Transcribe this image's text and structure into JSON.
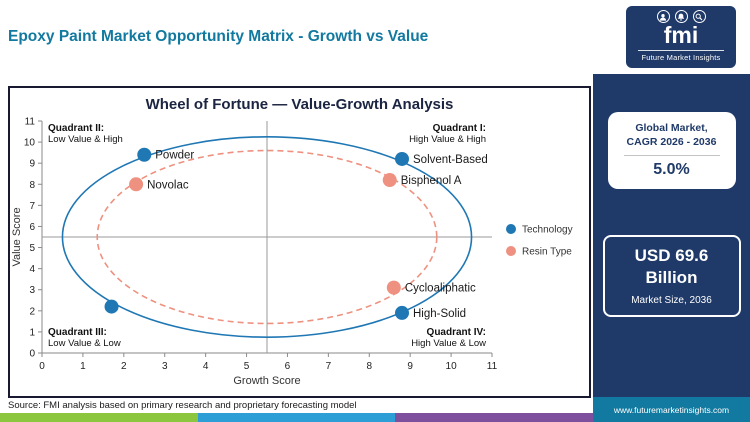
{
  "header": {
    "title": "Epoxy Paint Market Opportunity Matrix - Growth vs Value",
    "logo": {
      "text": "fmi",
      "subtitle": "Future Market Insights"
    }
  },
  "sidebar": {
    "cagr_box": {
      "line1": "Global Market,",
      "line2": "CAGR 2026 - 2036",
      "value": "5.0%"
    },
    "size_box": {
      "value": "USD 69.6 Billion",
      "label": "Market Size, 2036"
    },
    "url": "www.futuremarketinsights.com"
  },
  "footer": {
    "source": "Source: FMI analysis based on primary research and proprietary forecasting model"
  },
  "chart_data": {
    "type": "scatter",
    "title": "Wheel of Fortune — Value-Growth Analysis",
    "xlabel": "Growth Score",
    "ylabel": "Value Score",
    "xlim": [
      0,
      11
    ],
    "ylim": [
      0,
      11
    ],
    "xticks": [
      0,
      1,
      2,
      3,
      4,
      5,
      6,
      7,
      8,
      9,
      10,
      11
    ],
    "yticks": [
      0,
      1,
      2,
      3,
      4,
      5,
      6,
      7,
      8,
      9,
      10,
      11
    ],
    "grid": false,
    "legend_position": "right",
    "quadrant_lines": {
      "x": 5.5,
      "y": 5.5
    },
    "quadrants": [
      {
        "name": "Quadrant II:",
        "desc": "Low Value & High",
        "position": "top-left"
      },
      {
        "name": "Quadrant I:",
        "desc": "High Value & High",
        "position": "top-right"
      },
      {
        "name": "Quadrant III:",
        "desc": "Low Value & Low",
        "position": "bottom-left"
      },
      {
        "name": "Quadrant IV:",
        "desc": "High Value & Low",
        "position": "bottom-right"
      }
    ],
    "series": [
      {
        "name": "Technology",
        "color": "#1f77b4",
        "points": [
          {
            "label": "Powder",
            "x": 2.5,
            "y": 9.4
          },
          {
            "label": "Solvent-Based",
            "x": 8.8,
            "y": 9.2
          },
          {
            "label": "High-Solid",
            "x": 8.8,
            "y": 1.9
          },
          {
            "label": "",
            "x": 1.7,
            "y": 2.2
          }
        ]
      },
      {
        "name": "Resin Type",
        "color": "#ee9180",
        "points": [
          {
            "label": "Novolac",
            "x": 2.3,
            "y": 8.0
          },
          {
            "label": "Bisphenol A",
            "x": 8.5,
            "y": 8.2
          },
          {
            "label": "Cycloaliphatic",
            "x": 8.6,
            "y": 3.1
          }
        ]
      }
    ],
    "ellipses": [
      {
        "cx": 5.5,
        "cy": 5.5,
        "rx": 5.0,
        "ry": 4.75,
        "color": "#1f77b4",
        "dash": false
      },
      {
        "cx": 5.5,
        "cy": 5.5,
        "rx": 4.15,
        "ry": 4.1,
        "color": "#ee9180",
        "dash": true
      }
    ]
  },
  "colors": {
    "brand_navy": "#1f3a68",
    "accent_teal": "#1279a0",
    "technology_blue": "#1f77b4",
    "resin_salmon": "#ee9180",
    "strip": [
      "#8cc63e",
      "#2d9fd6",
      "#7d4f9d"
    ]
  }
}
